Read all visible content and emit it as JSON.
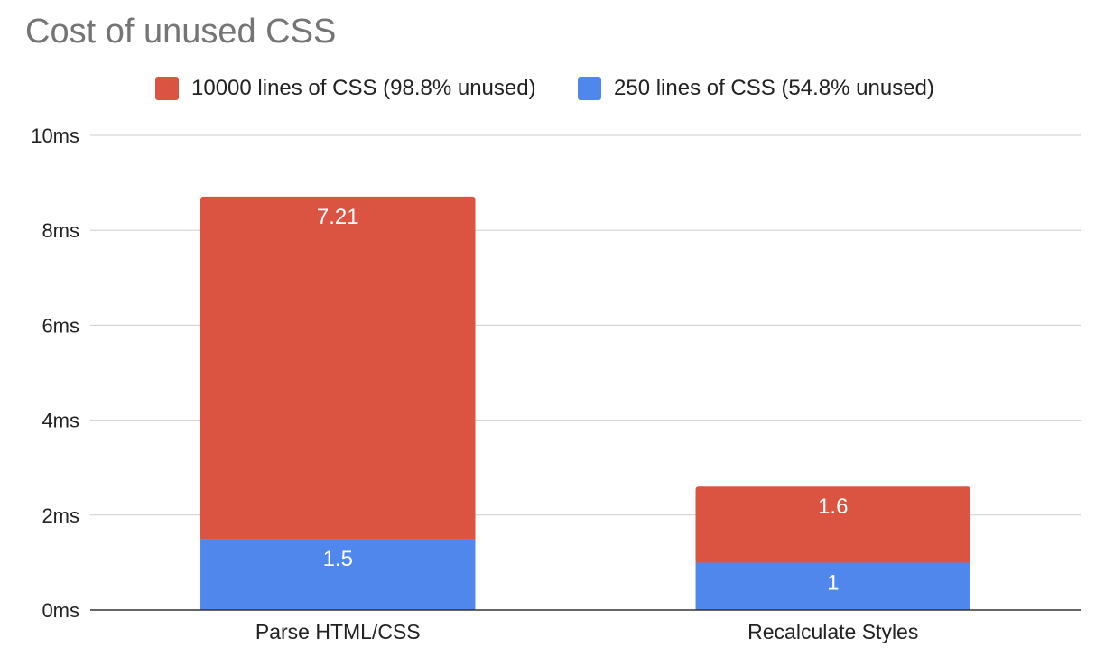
{
  "chart_data": {
    "type": "bar",
    "stacked": true,
    "title": "Cost of unused CSS",
    "xlabel": "",
    "ylabel": "",
    "categories": [
      "Parse HTML/CSS",
      "Recalculate Styles"
    ],
    "series": [
      {
        "name": "250 lines of CSS (54.8% unused)",
        "values": [
          1.5,
          1
        ],
        "labels": [
          "1.5",
          "1"
        ],
        "color": "#5087ec"
      },
      {
        "name": "10000 lines of CSS (98.8% unused)",
        "values": [
          7.21,
          1.6
        ],
        "labels": [
          "7.21",
          "1.6"
        ],
        "color": "#db5341"
      }
    ],
    "legend_order": [
      1,
      0
    ],
    "legend_position": "top",
    "ylim": [
      0,
      10
    ],
    "y_ticks": [
      0,
      2,
      4,
      6,
      8,
      10
    ],
    "y_tick_labels": [
      "0ms",
      "2ms",
      "4ms",
      "6ms",
      "8ms",
      "10ms"
    ],
    "grid": true,
    "colors": {
      "grid": "#cccccc",
      "axis": "#333333",
      "title": "#757575"
    }
  }
}
